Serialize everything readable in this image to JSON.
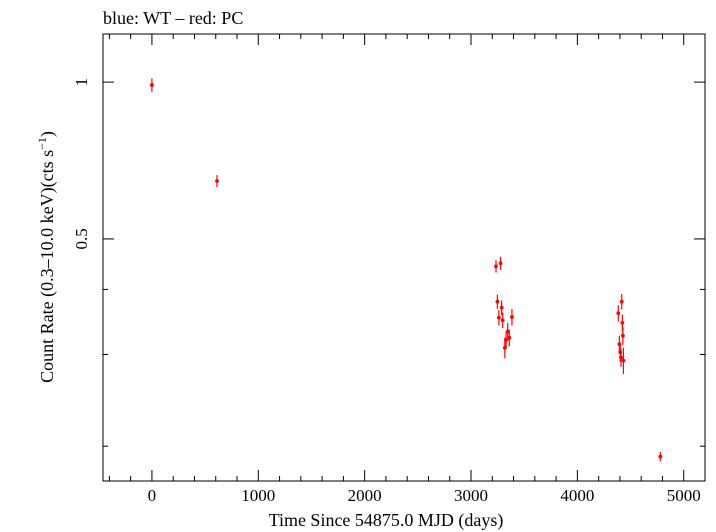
{
  "chart_data": {
    "type": "scatter",
    "title": "blue: WT – red: PC",
    "xlabel": "Time Since 54875.0 MJD (days)",
    "ylabel_main": "Count Rate (0.3–10.0 keV)(cts s",
    "ylabel_sup": "−1",
    "ylabel_close": ")",
    "xlim": [
      -460,
      5200
    ],
    "ylog": true,
    "ylim": [
      0.1715,
      1.237
    ],
    "x_ticks": [
      0,
      1000,
      2000,
      3000,
      4000,
      5000
    ],
    "x_tick_labels": [
      "0",
      "1000",
      "2000",
      "3000",
      "4000",
      "5000"
    ],
    "y_tick_values": [
      0.5,
      1
    ],
    "y_tick_labels": [
      "0.5",
      "1"
    ],
    "y_minor_ticks": [
      0.2,
      0.3,
      0.4
    ],
    "grid": false,
    "series": [
      {
        "color": "#ff0000",
        "points": [
          {
            "x": 0,
            "y": 0.987,
            "yerr": 0.03,
            "xerr": 8
          },
          {
            "x": 612,
            "y": 0.646,
            "yerr": 0.017,
            "xerr": 8
          },
          {
            "x": 3235,
            "y": 0.443,
            "yerr": 0.012,
            "xerr": 6
          },
          {
            "x": 3248,
            "y": 0.379,
            "yerr": 0.012,
            "xerr": 6
          },
          {
            "x": 3262,
            "y": 0.353,
            "yerr": 0.012,
            "xerr": 6
          },
          {
            "x": 3278,
            "y": 0.449,
            "yerr": 0.013,
            "xerr": 6
          },
          {
            "x": 3288,
            "y": 0.369,
            "yerr": 0.012,
            "xerr": 6
          },
          {
            "x": 3298,
            "y": 0.349,
            "yerr": 0.012,
            "xerr": 6
          },
          {
            "x": 3318,
            "y": 0.309,
            "yerr": 0.014,
            "xerr": 6
          },
          {
            "x": 3330,
            "y": 0.32,
            "yerr": 0.012,
            "xerr": 6
          },
          {
            "x": 3345,
            "y": 0.332,
            "yerr": 0.013,
            "xerr": 6
          },
          {
            "x": 3360,
            "y": 0.323,
            "yerr": 0.012,
            "xerr": 6
          },
          {
            "x": 3385,
            "y": 0.354,
            "yerr": 0.013,
            "xerr": 6
          },
          {
            "x": 4385,
            "y": 0.36,
            "yerr": 0.013,
            "xerr": 6
          },
          {
            "x": 4395,
            "y": 0.314,
            "yerr": 0.012,
            "xerr": 6
          },
          {
            "x": 4403,
            "y": 0.303,
            "yerr": 0.012,
            "xerr": 6
          },
          {
            "x": 4410,
            "y": 0.296,
            "yerr": 0.012,
            "xerr": 6
          },
          {
            "x": 4417,
            "y": 0.379,
            "yerr": 0.013,
            "xerr": 6
          },
          {
            "x": 4423,
            "y": 0.345,
            "yerr": 0.013,
            "xerr": 6
          },
          {
            "x": 4428,
            "y": 0.326,
            "yerr": 0.013,
            "xerr": 6
          },
          {
            "x": 4433,
            "y": 0.292,
            "yerr": 0.017,
            "xerr": 6
          },
          {
            "x": 4780,
            "y": 0.191,
            "yerr": 0.004,
            "xerr": 8
          }
        ]
      }
    ]
  }
}
